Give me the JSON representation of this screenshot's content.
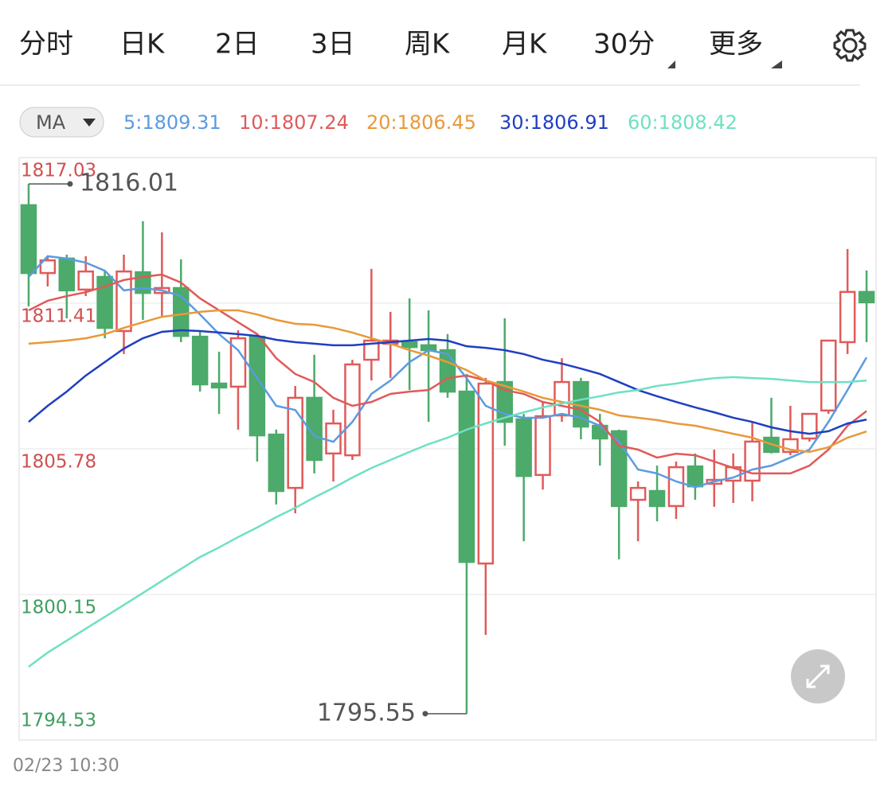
{
  "tabs": [
    "分时",
    "日K",
    "2日",
    "3日",
    "周K",
    "月K",
    "30分",
    "更多"
  ],
  "active_tab": 6,
  "active_color": "#4a7fd6",
  "indicator": "MA",
  "chart_data": {
    "type": "candlestick",
    "time_label": "02/23 10:30",
    "up_color": "#e05a5a",
    "down_color": "#4caa6a",
    "open": [
      1815.19,
      1812.57,
      1813.13,
      1811.93,
      1812.42,
      1810.33,
      1812.6,
      1811.8,
      1811.99,
      1810.11,
      1808.3,
      1808.18,
      1810.11,
      1806.33,
      1804.27,
      1807.75,
      1805.6,
      1805.53,
      1809.22,
      1809.84,
      1809.9,
      1809.78,
      1809.59,
      1807.99,
      1801.35,
      1808.36,
      1806.92,
      1804.77,
      1807.07,
      1808.36,
      1806.67,
      1806.46,
      1803.81,
      1804.15,
      1803.57,
      1805.1,
      1804.43,
      1804.55,
      1804.55,
      1806.21,
      1805.66,
      1806.18,
      1807.26,
      1809.9,
      1811.84
    ],
    "high": [
      1816.01,
      1813.22,
      1813.28,
      1813.22,
      1812.67,
      1813.28,
      1814.57,
      1814.14,
      1813.1,
      1810.36,
      1809.53,
      1810.36,
      1810.21,
      1806.52,
      1808.21,
      1809.41,
      1807.29,
      1809.22,
      1812.73,
      1811.07,
      1811.59,
      1811.13,
      1810.21,
      1808.67,
      1808.52,
      1810.82,
      1807.13,
      1807.59,
      1809.28,
      1808.52,
      1807.13,
      1806.52,
      1804.52,
      1805.13,
      1805.29,
      1805.6,
      1805.75,
      1805.6,
      1806.82,
      1807.75,
      1807.44,
      1807.13,
      1809.96,
      1813.5,
      1812.67
    ],
    "low": [
      1811.28,
      1812.05,
      1810.82,
      1811.68,
      1810.05,
      1809.44,
      1810.76,
      1810.88,
      1809.9,
      1807.99,
      1807.13,
      1806.52,
      1805.29,
      1803.63,
      1803.29,
      1804.83,
      1804.52,
      1805.35,
      1808.42,
      1808.52,
      1808.05,
      1806.82,
      1807.75,
      1795.55,
      1798.59,
      1805.9,
      1802.21,
      1804.21,
      1806.82,
      1806.15,
      1805.13,
      1801.51,
      1802.21,
      1802.98,
      1803.07,
      1803.81,
      1803.54,
      1803.69,
      1803.75,
      1805.6,
      1805.53,
      1806.06,
      1807.13,
      1809.44,
      1809.9
    ],
    "close": [
      1812.57,
      1813.06,
      1811.9,
      1812.63,
      1810.45,
      1812.63,
      1811.8,
      1811.99,
      1810.14,
      1808.27,
      1808.15,
      1810.05,
      1806.3,
      1804.15,
      1807.75,
      1805.35,
      1806.76,
      1809.04,
      1809.96,
      1809.96,
      1809.71,
      1809.59,
      1807.99,
      1801.41,
      1808.3,
      1806.82,
      1804.73,
      1807.04,
      1808.36,
      1806.64,
      1806.18,
      1803.57,
      1804.27,
      1803.57,
      1805.07,
      1804.33,
      1804.58,
      1805.07,
      1806.06,
      1805.66,
      1806.15,
      1807.13,
      1809.96,
      1811.84,
      1811.44
    ],
    "high_label_index": 0,
    "low_label_index": 23,
    "series": [
      {
        "name": "5:1809.31",
        "color": "#5b9be0",
        "values": [
          1812.42,
          1813.22,
          1813.13,
          1812.97,
          1812.66,
          1811.9,
          1811.99,
          1811.9,
          1811.68,
          1810.97,
          1810.21,
          1809.59,
          1808.51,
          1807.44,
          1807.28,
          1806.27,
          1806.05,
          1806.82,
          1807.9,
          1808.42,
          1809.13,
          1809.59,
          1809.44,
          1808.51,
          1807.44,
          1807.13,
          1806.98,
          1806.98,
          1807.13,
          1806.98,
          1806.67,
          1806.05,
          1804.98,
          1804.83,
          1804.52,
          1804.3,
          1804.52,
          1804.67,
          1804.98,
          1805.13,
          1805.44,
          1805.75,
          1806.82,
          1808.05,
          1809.31
        ]
      },
      {
        "name": "10:1807.24",
        "color": "#e05a5a",
        "values": [
          1811.13,
          1811.5,
          1811.68,
          1811.83,
          1812.05,
          1812.3,
          1812.42,
          1812.51,
          1812.2,
          1811.59,
          1811.13,
          1810.67,
          1810.21,
          1809.28,
          1808.67,
          1808.36,
          1807.75,
          1807.44,
          1807.59,
          1807.9,
          1807.99,
          1808.05,
          1808.51,
          1808.61,
          1808.42,
          1808.05,
          1807.9,
          1807.59,
          1807.44,
          1807.29,
          1806.82,
          1805.9,
          1805.75,
          1805.44,
          1805.59,
          1805.53,
          1805.29,
          1805.04,
          1804.83,
          1804.83,
          1804.83,
          1805.13,
          1805.75,
          1806.67,
          1807.24
        ]
      },
      {
        "name": "20:1806.45",
        "color": "#e8993a",
        "values": [
          1809.84,
          1809.9,
          1809.96,
          1810.05,
          1810.21,
          1810.45,
          1810.67,
          1810.88,
          1810.97,
          1811.07,
          1811.13,
          1811.13,
          1810.97,
          1810.76,
          1810.61,
          1810.57,
          1810.45,
          1810.27,
          1810.05,
          1809.84,
          1809.59,
          1809.38,
          1809.13,
          1808.82,
          1808.42,
          1808.21,
          1807.99,
          1807.75,
          1807.59,
          1807.44,
          1807.29,
          1807.07,
          1806.98,
          1806.89,
          1806.76,
          1806.67,
          1806.52,
          1806.36,
          1806.21,
          1805.96,
          1805.75,
          1805.66,
          1805.84,
          1806.21,
          1806.45
        ]
      },
      {
        "name": "30:1806.91",
        "color": "#1f3fc2",
        "values": [
          1806.82,
          1807.44,
          1807.99,
          1808.61,
          1809.13,
          1809.65,
          1810.05,
          1810.3,
          1810.36,
          1810.33,
          1810.27,
          1810.21,
          1810.14,
          1809.99,
          1809.9,
          1809.84,
          1809.78,
          1809.78,
          1809.84,
          1809.9,
          1809.96,
          1810.02,
          1809.96,
          1809.74,
          1809.68,
          1809.59,
          1809.44,
          1809.22,
          1809.07,
          1808.88,
          1808.67,
          1808.36,
          1808.05,
          1807.81,
          1807.59,
          1807.38,
          1807.19,
          1806.98,
          1806.82,
          1806.61,
          1806.46,
          1806.36,
          1806.46,
          1806.76,
          1806.91
        ]
      },
      {
        "name": "60:1808.42",
        "color": "#6fe0c3",
        "values": [
          1797.36,
          1797.91,
          1798.37,
          1798.83,
          1799.29,
          1799.75,
          1800.21,
          1800.68,
          1801.14,
          1801.6,
          1801.97,
          1802.37,
          1802.74,
          1803.14,
          1803.5,
          1803.9,
          1804.27,
          1804.67,
          1805.04,
          1805.35,
          1805.66,
          1805.96,
          1806.21,
          1806.52,
          1806.76,
          1806.98,
          1807.19,
          1807.38,
          1807.53,
          1807.68,
          1807.81,
          1807.96,
          1808.05,
          1808.21,
          1808.3,
          1808.42,
          1808.51,
          1808.55,
          1808.51,
          1808.48,
          1808.42,
          1808.36,
          1808.36,
          1808.36,
          1808.42
        ]
      }
    ],
    "ylim": [
      1794.53,
      1817.03
    ],
    "yticks": [
      1817.03,
      1811.41,
      1805.78,
      1800.15,
      1794.53
    ],
    "ytick_colors": [
      "#d05050",
      "#d05050",
      "#d05050",
      "#3f9e5f",
      "#3f9e5f"
    ],
    "grid": true
  }
}
